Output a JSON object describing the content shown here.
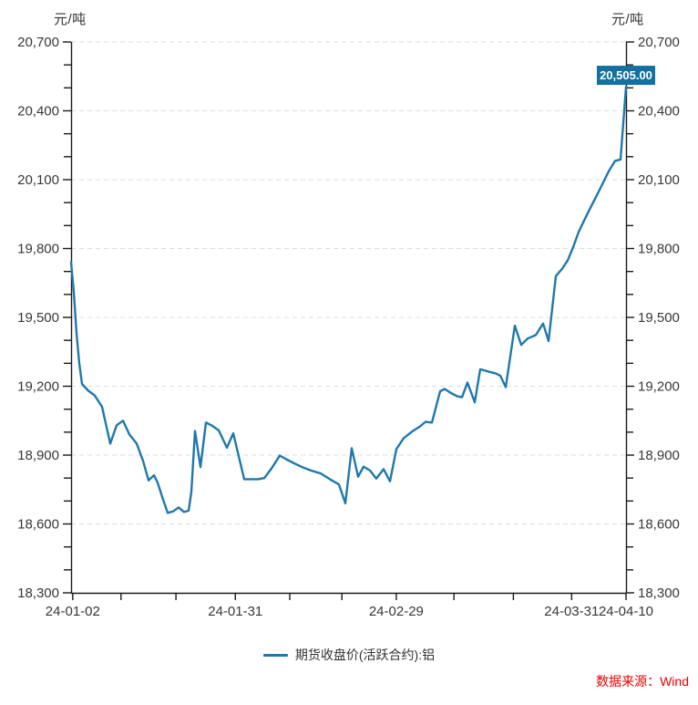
{
  "header": {
    "unit_left": "元/吨",
    "unit_right": "元/吨"
  },
  "legend": {
    "label": "期货收盘价(活跃合约):铝"
  },
  "source": {
    "label": "数据来源：Wind"
  },
  "value_badge": {
    "text": "20,505.00"
  },
  "colors": {
    "line": "#1f78ab",
    "badge_bg": "#14709f",
    "badge_text": "#ffffff",
    "grid": "#dedede",
    "axis": "#1a1a1a",
    "tick_text": "#383838",
    "source_text": "#e60000"
  },
  "chart_data": {
    "type": "line",
    "title": "",
    "ylabel": "元/吨",
    "ylim": [
      18300,
      20700
    ],
    "ytick_step": 300,
    "y_minor_step": 100,
    "grid": "horizontal-dashed-at-major-ticks",
    "legend_position": "bottom-center",
    "last_value": 20505.0,
    "series_name": "期货收盘价(活跃合约):铝",
    "xticks": [
      {
        "f": 0.003,
        "label": "24-01-02"
      },
      {
        "f": 0.09,
        "label": ""
      },
      {
        "f": 0.189,
        "label": ""
      },
      {
        "f": 0.296,
        "label": "24-01-31"
      },
      {
        "f": 0.394,
        "label": ""
      },
      {
        "f": 0.488,
        "label": ""
      },
      {
        "f": 0.586,
        "label": "24-02-29"
      },
      {
        "f": 0.69,
        "label": ""
      },
      {
        "f": 0.797,
        "label": ""
      },
      {
        "f": 0.902,
        "label": "24-03-31"
      },
      {
        "f": 1.0,
        "label": "24-04-10"
      }
    ],
    "points": [
      [
        0.0,
        19740
      ],
      [
        0.0049,
        19610
      ],
      [
        0.0099,
        19430
      ],
      [
        0.0148,
        19300
      ],
      [
        0.0197,
        19210
      ],
      [
        0.0312,
        19180
      ],
      [
        0.0427,
        19160
      ],
      [
        0.0558,
        19110
      ],
      [
        0.0706,
        18950
      ],
      [
        0.0821,
        19030
      ],
      [
        0.0936,
        19050
      ],
      [
        0.1051,
        18990
      ],
      [
        0.1182,
        18950
      ],
      [
        0.1297,
        18875
      ],
      [
        0.1396,
        18790
      ],
      [
        0.1494,
        18812
      ],
      [
        0.156,
        18780
      ],
      [
        0.1642,
        18718
      ],
      [
        0.1741,
        18648
      ],
      [
        0.1839,
        18655
      ],
      [
        0.1938,
        18672
      ],
      [
        0.2036,
        18652
      ],
      [
        0.2118,
        18658
      ],
      [
        0.2167,
        18740
      ],
      [
        0.2233,
        19005
      ],
      [
        0.2332,
        18848
      ],
      [
        0.243,
        19042
      ],
      [
        0.2529,
        19030
      ],
      [
        0.266,
        19008
      ],
      [
        0.2808,
        18932
      ],
      [
        0.2923,
        18995
      ],
      [
        0.3038,
        18878
      ],
      [
        0.312,
        18795
      ],
      [
        0.3251,
        18795
      ],
      [
        0.3366,
        18795
      ],
      [
        0.3481,
        18800
      ],
      [
        0.3612,
        18842
      ],
      [
        0.376,
        18898
      ],
      [
        0.3892,
        18880
      ],
      [
        0.4039,
        18862
      ],
      [
        0.4187,
        18845
      ],
      [
        0.4335,
        18832
      ],
      [
        0.4499,
        18820
      ],
      [
        0.4664,
        18795
      ],
      [
        0.4828,
        18772
      ],
      [
        0.4943,
        18690
      ],
      [
        0.5057,
        18930
      ],
      [
        0.5172,
        18806
      ],
      [
        0.5271,
        18850
      ],
      [
        0.5386,
        18833
      ],
      [
        0.5501,
        18798
      ],
      [
        0.5632,
        18839
      ],
      [
        0.5747,
        18786
      ],
      [
        0.5862,
        18926
      ],
      [
        0.5993,
        18974
      ],
      [
        0.6158,
        19005
      ],
      [
        0.6289,
        19025
      ],
      [
        0.6388,
        19045
      ],
      [
        0.6503,
        19042
      ],
      [
        0.665,
        19178
      ],
      [
        0.6732,
        19188
      ],
      [
        0.6847,
        19170
      ],
      [
        0.6962,
        19156
      ],
      [
        0.7044,
        19152
      ],
      [
        0.7143,
        19216
      ],
      [
        0.7274,
        19130
      ],
      [
        0.7373,
        19274
      ],
      [
        0.752,
        19264
      ],
      [
        0.7652,
        19256
      ],
      [
        0.7734,
        19246
      ],
      [
        0.7833,
        19196
      ],
      [
        0.7997,
        19464
      ],
      [
        0.8112,
        19380
      ],
      [
        0.8227,
        19408
      ],
      [
        0.8374,
        19423
      ],
      [
        0.8506,
        19473
      ],
      [
        0.8604,
        19397
      ],
      [
        0.8735,
        19680
      ],
      [
        0.885,
        19712
      ],
      [
        0.8949,
        19748
      ],
      [
        0.9047,
        19806
      ],
      [
        0.9146,
        19872
      ],
      [
        0.9244,
        19922
      ],
      [
        0.9359,
        19978
      ],
      [
        0.9458,
        20024
      ],
      [
        0.9573,
        20080
      ],
      [
        0.9688,
        20136
      ],
      [
        0.9803,
        20182
      ],
      [
        0.9901,
        20188
      ],
      [
        1.0,
        20505
      ]
    ]
  }
}
